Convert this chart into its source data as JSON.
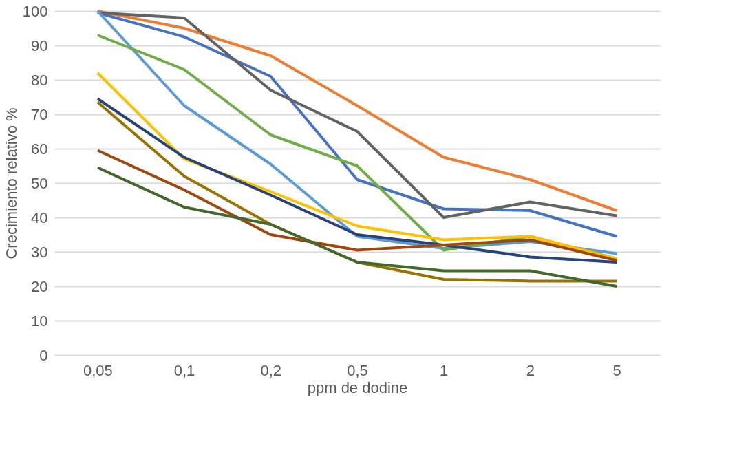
{
  "chart_data": {
    "type": "line",
    "xlabel": "ppm de dodine",
    "ylabel": "Crecimiento relativo %",
    "categories": [
      "0,05",
      "0,1",
      "0,2",
      "0,5",
      "1",
      "2",
      "5"
    ],
    "ylim": [
      0,
      100
    ],
    "yticks": [
      0,
      10,
      20,
      30,
      40,
      50,
      60,
      70,
      80,
      90,
      100
    ],
    "grid": "y",
    "legend": false,
    "marker": "none",
    "line_style": "solid",
    "series": [
      {
        "color": "#4472c4",
        "values": [
          99.5,
          92.5,
          81,
          51,
          42.5,
          42,
          34.5
        ]
      },
      {
        "color": "#ed7d31",
        "values": [
          100,
          95,
          87,
          72.5,
          57.5,
          51,
          42
        ]
      },
      {
        "color": "#636363",
        "values": [
          99.5,
          98,
          77,
          65,
          40,
          44.5,
          40.5
        ]
      },
      {
        "color": "#5b9bd5",
        "values": [
          100,
          72.5,
          55.5,
          34.5,
          31,
          33,
          29.5
        ]
      },
      {
        "color": "#70ad47",
        "values": [
          93,
          83,
          64,
          55,
          30.5,
          34.5,
          28
        ]
      },
      {
        "color": "#ffc000",
        "values": [
          82,
          57,
          47.5,
          37.5,
          33.5,
          34.5,
          28
        ]
      },
      {
        "color": "#264478",
        "values": [
          74.5,
          57.5,
          46.5,
          35,
          32,
          28.5,
          27
        ]
      },
      {
        "color": "#997300",
        "values": [
          73.5,
          52,
          38,
          27,
          22,
          21.5,
          21.5
        ]
      },
      {
        "color": "#9e480e",
        "values": [
          59.5,
          48,
          35,
          30.5,
          32,
          33.5,
          27.5
        ]
      },
      {
        "color": "#43682b",
        "values": [
          54.5,
          43,
          38,
          27,
          24.5,
          24.5,
          20
        ]
      }
    ]
  }
}
